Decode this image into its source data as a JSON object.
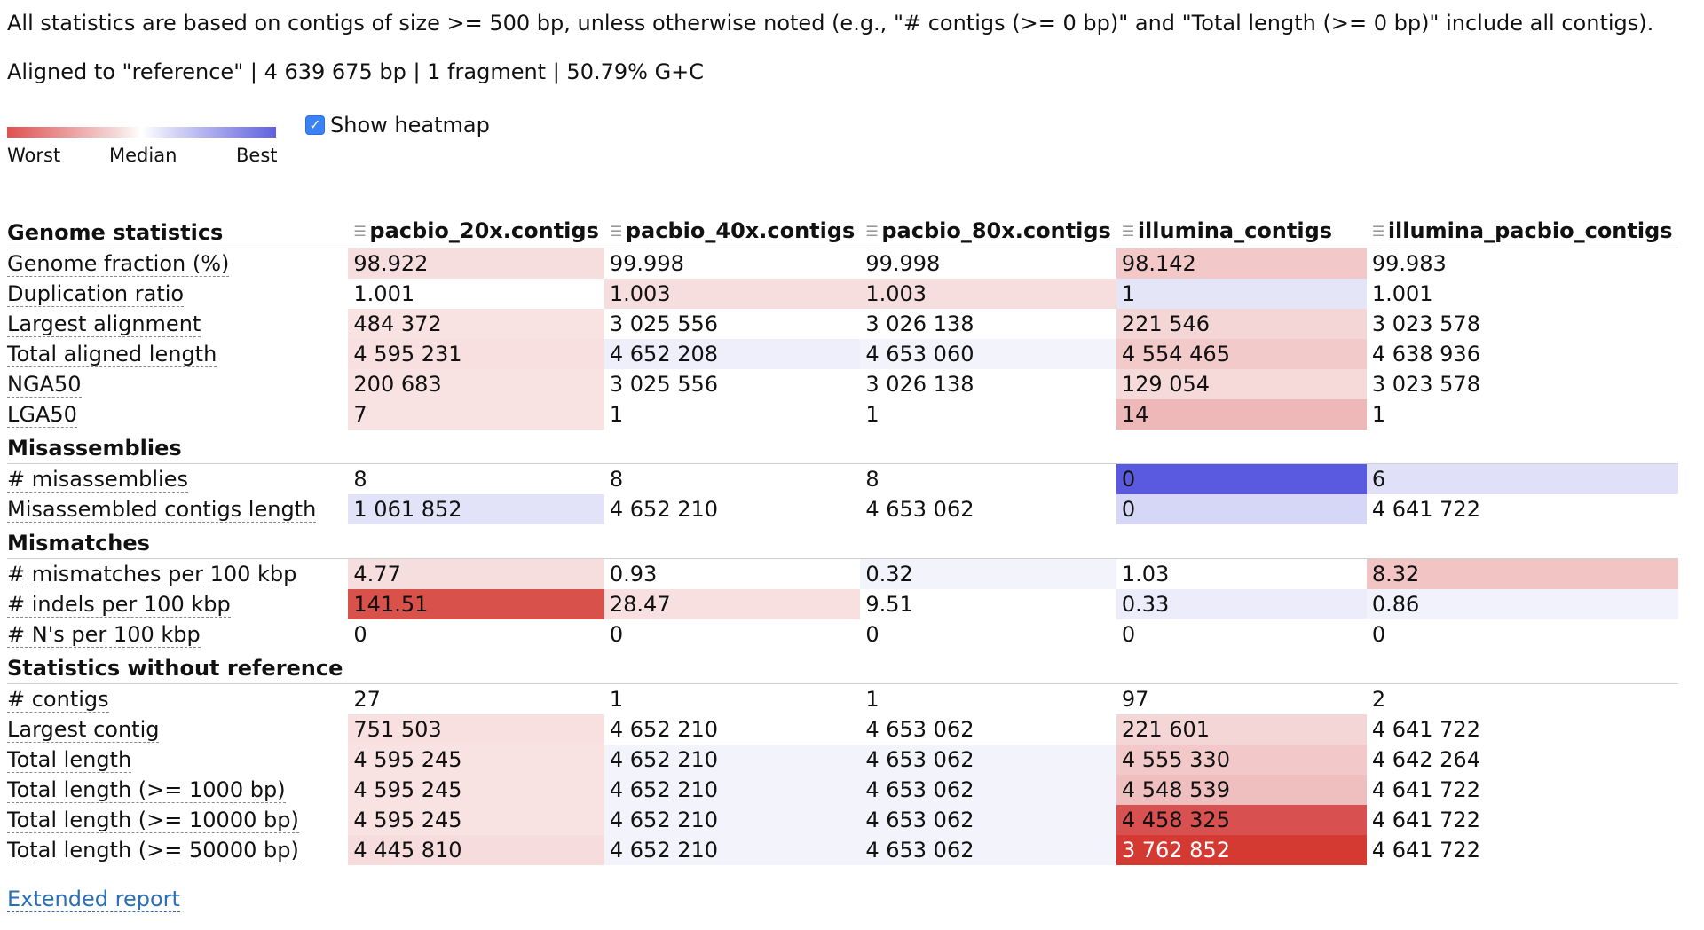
{
  "header": {
    "note": "All statistics are based on contigs of size >= 500 bp, unless otherwise noted (e.g., \"# contigs (>= 0 bp)\" and \"Total length (>= 0 bp)\" include all contigs).",
    "aligned": "Aligned to \"reference\" | 4 639 675 bp | 1 fragment | 50.79% G+C"
  },
  "legend": {
    "worst": "Worst",
    "median": "Median",
    "best": "Best"
  },
  "heatmap": {
    "label": "Show heatmap",
    "checked": true,
    "check_glyph": "✓"
  },
  "colors": {
    "worst": "#e05050",
    "best": "#6060e0",
    "link": "#2a6fb5"
  },
  "columns": [
    "pacbio_20x.contigs",
    "pacbio_40x.contigs",
    "pacbio_80x.contigs",
    "illumina_contigs",
    "illumina_pacbio_contigs"
  ],
  "sections": [
    {
      "title": "Genome statistics",
      "rows": [
        {
          "label": "Genome fraction (%)",
          "values": [
            "98.922",
            "99.998",
            "99.998",
            "98.142",
            "99.983"
          ],
          "colors": [
            "#f7dede",
            "#ffffff",
            "#ffffff",
            "#f2c8c8",
            "#ffffff"
          ]
        },
        {
          "label": "Duplication ratio",
          "values": [
            "1.001",
            "1.003",
            "1.003",
            "1",
            "1.001"
          ],
          "colors": [
            "#ffffff",
            "#f7dede",
            "#f7dede",
            "#e5e5f8",
            "#ffffff"
          ]
        },
        {
          "label": "Largest alignment",
          "values": [
            "484 372",
            "3 025 556",
            "3 026 138",
            "221 546",
            "3 023 578"
          ],
          "colors": [
            "#f8e2e2",
            "#ffffff",
            "#ffffff",
            "#f5d6d6",
            "#ffffff"
          ]
        },
        {
          "label": "Total aligned length",
          "values": [
            "4 595 231",
            "4 652 208",
            "4 653 060",
            "4 554 465",
            "4 638 936"
          ],
          "colors": [
            "#f8e0e0",
            "#efeffb",
            "#f3f3fc",
            "#f2caca",
            "#ffffff"
          ]
        },
        {
          "label": "NGA50",
          "values": [
            "200 683",
            "3 025 556",
            "3 026 138",
            "129 054",
            "3 023 578"
          ],
          "colors": [
            "#f8e2e2",
            "#ffffff",
            "#ffffff",
            "#f6dada",
            "#ffffff"
          ]
        },
        {
          "label": "LGA50",
          "values": [
            "7",
            "1",
            "1",
            "14",
            "1"
          ],
          "colors": [
            "#f8e2e2",
            "#ffffff",
            "#ffffff",
            "#efb8b8",
            "#ffffff"
          ]
        }
      ]
    },
    {
      "title": "Misassemblies",
      "rows": [
        {
          "label": "# misassemblies",
          "values": [
            "8",
            "8",
            "8",
            "0",
            "6"
          ],
          "colors": [
            "#ffffff",
            "#ffffff",
            "#ffffff",
            "#5a5ae0",
            "#e0e0f8"
          ]
        },
        {
          "label": "Misassembled contigs length",
          "values": [
            "1 061 852",
            "4 652 210",
            "4 653 062",
            "0",
            "4 641 722"
          ],
          "colors": [
            "#e2e2f8",
            "#ffffff",
            "#ffffff",
            "#d6d6f6",
            "#ffffff"
          ]
        }
      ]
    },
    {
      "title": "Mismatches",
      "rows": [
        {
          "label": "# mismatches per 100 kbp",
          "values": [
            "4.77",
            "0.93",
            "0.32",
            "1.03",
            "8.32"
          ],
          "colors": [
            "#f7dede",
            "#ffffff",
            "#f3f3fc",
            "#ffffff",
            "#f2c4c4"
          ]
        },
        {
          "label": "# indels per 100 kbp",
          "values": [
            "141.51",
            "28.47",
            "9.51",
            "0.33",
            "0.86"
          ],
          "colors": [
            "#d9514b",
            "#f8e0e0",
            "#ffffff",
            "#ececfa",
            "#f2f2fc"
          ]
        },
        {
          "label": "# N's per 100 kbp",
          "values": [
            "0",
            "0",
            "0",
            "0",
            "0"
          ],
          "colors": [
            "#ffffff",
            "#ffffff",
            "#ffffff",
            "#ffffff",
            "#ffffff"
          ]
        }
      ]
    },
    {
      "title": "Statistics without reference",
      "rows": [
        {
          "label": "# contigs",
          "values": [
            "27",
            "1",
            "1",
            "97",
            "2"
          ],
          "colors": [
            "#ffffff",
            "#ffffff",
            "#ffffff",
            "#ffffff",
            "#ffffff"
          ]
        },
        {
          "label": "Largest contig",
          "values": [
            "751 503",
            "4 652 210",
            "4 653 062",
            "221 601",
            "4 641 722"
          ],
          "colors": [
            "#f8e0e0",
            "#ffffff",
            "#ffffff",
            "#f5d6d6",
            "#ffffff"
          ]
        },
        {
          "label": "Total length",
          "values": [
            "4 595 245",
            "4 652 210",
            "4 653 062",
            "4 555 330",
            "4 642 264"
          ],
          "colors": [
            "#f8e2e2",
            "#f3f3fc",
            "#f3f3fc",
            "#f2c8c8",
            "#ffffff"
          ]
        },
        {
          "label": "Total length (>= 1000 bp)",
          "values": [
            "4 595 245",
            "4 652 210",
            "4 653 062",
            "4 548 539",
            "4 641 722"
          ],
          "colors": [
            "#f8e2e2",
            "#f3f3fc",
            "#f3f3fc",
            "#efbebe",
            "#ffffff"
          ]
        },
        {
          "label": "Total length (>= 10000 bp)",
          "values": [
            "4 595 245",
            "4 652 210",
            "4 653 062",
            "4 458 325",
            "4 641 722"
          ],
          "colors": [
            "#f8e2e2",
            "#f3f3fc",
            "#f3f3fc",
            "#d95050",
            "#ffffff"
          ]
        },
        {
          "label": "Total length (>= 50000 bp)",
          "values": [
            "4 445 810",
            "4 652 210",
            "4 653 062",
            "3 762 852",
            "4 641 722"
          ],
          "colors": [
            "#f6dcdc",
            "#f3f3fc",
            "#f3f3fc",
            "#d43a32",
            "#ffffff"
          ]
        }
      ]
    }
  ],
  "footer": {
    "link": "Extended report"
  }
}
